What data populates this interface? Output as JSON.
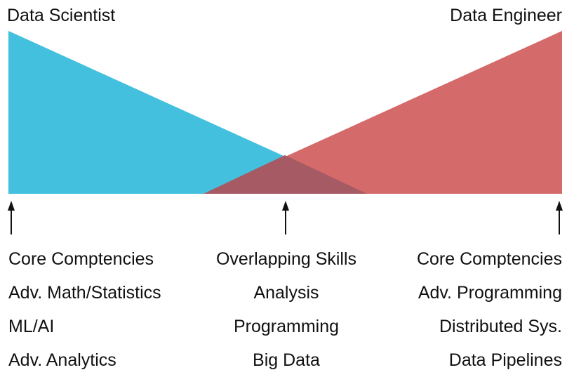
{
  "roles": {
    "left": {
      "title": "Data Scientist",
      "color": "#44c0df"
    },
    "right": {
      "title": "Data Engineer",
      "color": "#d46a6a"
    },
    "overlap_color": "#a65a63"
  },
  "columns": {
    "left": [
      "Core Comptencies",
      "Adv. Math/Statistics",
      "ML/AI",
      "Adv. Analytics"
    ],
    "center": [
      "Overlapping Skills",
      "Analysis",
      "Programming",
      "Big Data"
    ],
    "right": [
      "Core Comptencies",
      "Adv. Programming",
      "Distributed Sys.",
      "Data Pipelines"
    ]
  }
}
